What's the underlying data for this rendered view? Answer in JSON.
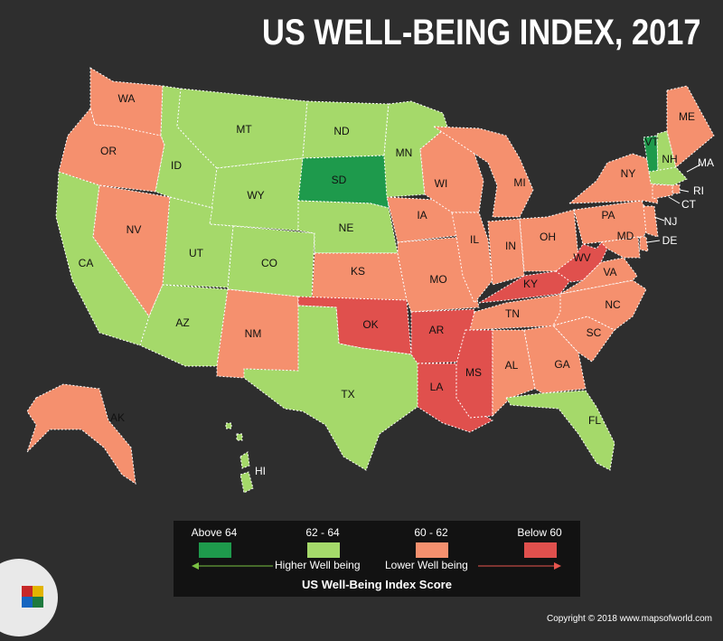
{
  "title": "US WELL-BEING INDEX, 2017",
  "colors": {
    "above64": "#1e9a4c",
    "range62_64": "#a5d96a",
    "range60_62": "#f5906e",
    "below60": "#e0504d"
  },
  "states": {
    "WA": "WA",
    "OR": "OR",
    "CA": "CA",
    "NV": "NV",
    "ID": "ID",
    "MT": "MT",
    "WY": "WY",
    "UT": "UT",
    "AZ": "AZ",
    "CO": "CO",
    "NM": "NM",
    "ND": "ND",
    "SD": "SD",
    "NE": "NE",
    "KS": "KS",
    "OK": "OK",
    "TX": "TX",
    "MN": "MN",
    "IA": "IA",
    "MO": "MO",
    "AR": "AR",
    "LA": "LA",
    "WI": "WI",
    "IL": "IL",
    "MI": "MI",
    "IN": "IN",
    "OH": "OH",
    "KY": "KY",
    "TN": "TN",
    "MS": "MS",
    "AL": "AL",
    "GA": "GA",
    "FL": "FL",
    "SC": "SC",
    "NC": "NC",
    "VA": "VA",
    "WV": "WV",
    "PA": "PA",
    "NY": "NY",
    "VT": "VT",
    "NH": "NH",
    "ME": "ME",
    "MA": "MA",
    "RI": "RI",
    "CT": "CT",
    "NJ": "NJ",
    "DE": "DE",
    "MD": "MD",
    "AK": "AK",
    "HI": "HI"
  },
  "legend": {
    "above": "Above 64",
    "mid_high": "62 - 64",
    "mid_low": "60 - 62",
    "below": "Below 60",
    "higher": "Higher Well being",
    "lower": "Lower Well being",
    "caption": "US Well-Being Index Score"
  },
  "footer": "Copyright © 2018 www.mapsofworld.com"
}
